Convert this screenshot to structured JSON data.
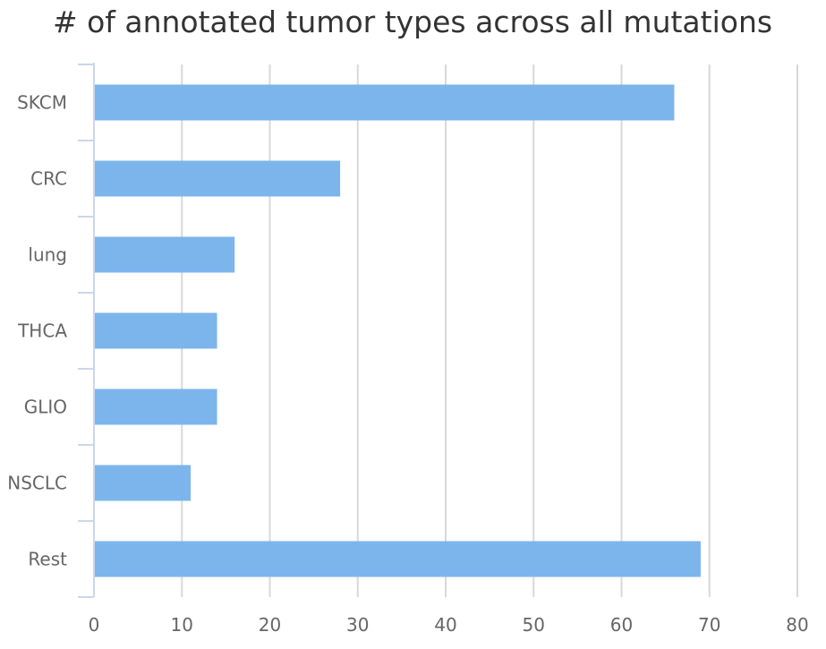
{
  "chart_data": {
    "type": "bar",
    "orientation": "horizontal",
    "title": "# of annotated tumor types across all mutations",
    "xlabel": "",
    "ylabel": "",
    "categories": [
      "SKCM",
      "CRC",
      "lung",
      "THCA",
      "GLIO",
      "NSCLC",
      "Rest"
    ],
    "values": [
      66,
      28,
      16,
      14,
      14,
      11,
      69
    ],
    "xlim": [
      0,
      80
    ],
    "xticks": [
      0,
      10,
      20,
      30,
      40,
      50,
      60,
      70,
      80
    ],
    "grid": true,
    "legend": "none"
  },
  "colors": {
    "bar": "#7cb5ec",
    "grid": "#d8d8d8",
    "axis_line": "#ccd6eb",
    "title": "#333333",
    "tick_label": "#666666"
  }
}
